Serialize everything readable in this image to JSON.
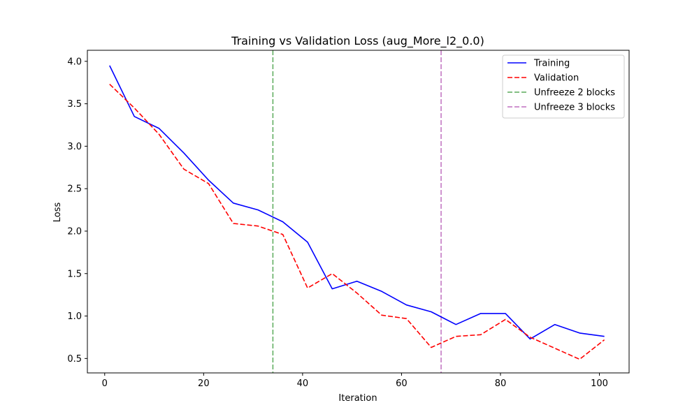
{
  "chart_data": {
    "type": "line",
    "title": "Training vs Validation Loss (aug_More_l2_0.0)",
    "xlabel": "Iteration",
    "ylabel": "Loss",
    "xlim": [
      -3.5,
      106
    ],
    "ylim": [
      0.33,
      4.13
    ],
    "xticks": [
      0,
      20,
      40,
      60,
      80,
      100
    ],
    "yticks": [
      0.5,
      1.0,
      1.5,
      2.0,
      2.5,
      3.0,
      3.5,
      4.0
    ],
    "ytick_labels": [
      "0.5",
      "1.0",
      "1.5",
      "2.0",
      "2.5",
      "3.0",
      "3.5",
      "4.0"
    ],
    "x": [
      1,
      6,
      11,
      16,
      21,
      26,
      31,
      36,
      41,
      46,
      51,
      56,
      61,
      66,
      71,
      76,
      81,
      86,
      91,
      96,
      101
    ],
    "series": [
      {
        "name": "Training",
        "color": "#0000ff",
        "style": "solid",
        "values": [
          3.95,
          3.35,
          3.21,
          2.92,
          2.6,
          2.33,
          2.25,
          2.11,
          1.87,
          1.32,
          1.41,
          1.29,
          1.13,
          1.05,
          0.9,
          1.03,
          1.03,
          0.73,
          0.9,
          0.8,
          0.76
        ]
      },
      {
        "name": "Validation",
        "color": "#ff0000",
        "style": "dashed",
        "values": [
          3.73,
          3.45,
          3.14,
          2.73,
          2.56,
          2.09,
          2.06,
          1.96,
          1.33,
          1.5,
          1.27,
          1.01,
          0.97,
          0.63,
          0.76,
          0.78,
          0.96,
          0.75,
          0.62,
          0.49,
          0.72
        ]
      }
    ],
    "vlines": [
      {
        "name": "Unfreeze 2 blocks",
        "x": 34,
        "color": "#5aaa5a"
      },
      {
        "name": "Unfreeze 3 blocks",
        "x": 68,
        "color": "#bf6fbf"
      }
    ],
    "legend_position": "top-right",
    "grid": false
  }
}
